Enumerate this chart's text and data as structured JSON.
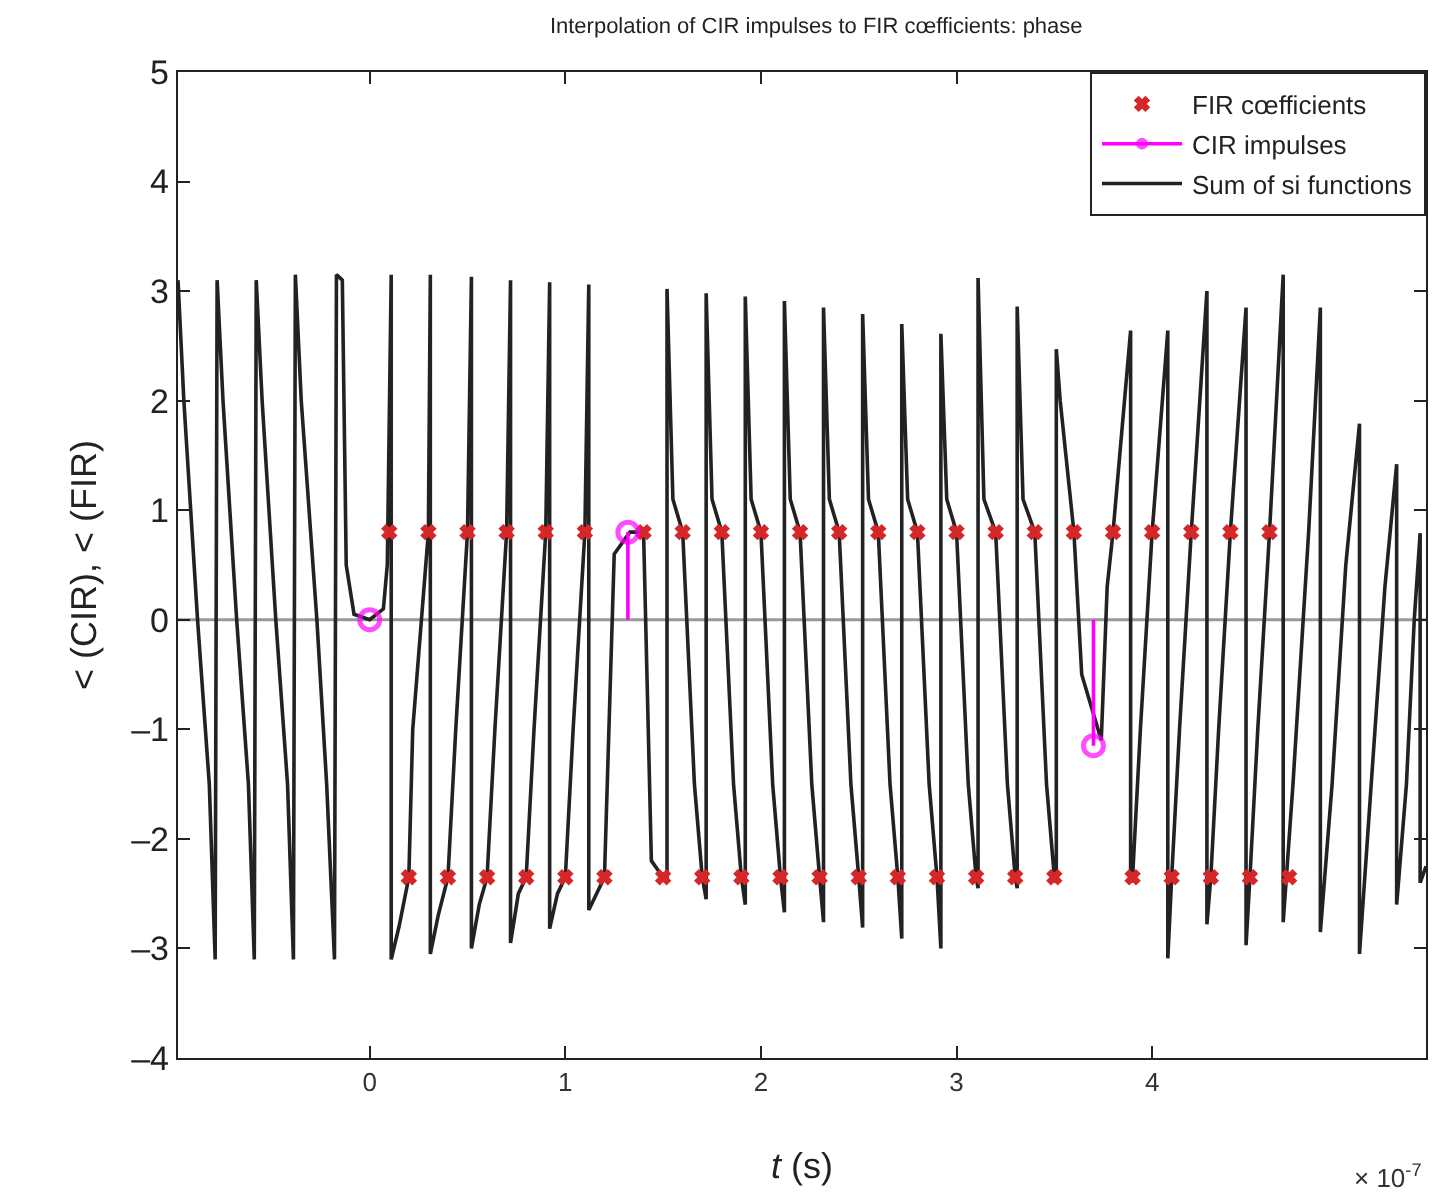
{
  "chart_data": {
    "type": "line",
    "title": "Interpolation of CIR impulses to FIR cœfficients: phase",
    "xlabel": "t (s)",
    "ylabel": "< (CIR), < (FIR)",
    "xlim": [
      -0.98,
      5.4
    ],
    "xticks": [
      0,
      1,
      2,
      3,
      4
    ],
    "ylim": [
      -4,
      5
    ],
    "yticks": [
      {
        "value": -4,
        "label": "–4"
      },
      {
        "value": -3,
        "label": "–3"
      },
      {
        "value": -2,
        "label": "–2"
      },
      {
        "value": -1,
        "label": "–1"
      },
      0,
      1,
      2,
      3,
      4,
      5
    ],
    "grid": false,
    "legend": "top right",
    "annotations": [
      "× 10$^{-7}$"
    ],
    "ref_lines": [
      {
        "axis": "y",
        "value": 0,
        "color": "#999999"
      }
    ],
    "series": [
      {
        "name": "FIR cœfficients",
        "type": "scatter",
        "marker": "cross",
        "color": "#d62728",
        "x": [
          0.1,
          0.2,
          0.3,
          0.4,
          0.5,
          0.6,
          0.7,
          0.8,
          0.9,
          1.0,
          1.1,
          1.2,
          1.4,
          1.5,
          1.6,
          1.7,
          1.8,
          1.9,
          2.0,
          2.1,
          2.2,
          2.3,
          2.4,
          2.5,
          2.6,
          2.7,
          2.8,
          2.9,
          3.0,
          3.1,
          3.2,
          3.3,
          3.4,
          3.5,
          3.6,
          3.8,
          3.9,
          4.0,
          4.1,
          4.2,
          4.3,
          4.4,
          4.5,
          4.6,
          4.7
        ],
        "values": [
          0.8,
          -2.35,
          0.8,
          -2.35,
          0.8,
          -2.35,
          0.8,
          -2.35,
          0.8,
          -2.35,
          0.8,
          -2.35,
          0.8,
          -2.35,
          0.8,
          -2.35,
          0.8,
          -2.35,
          0.8,
          -2.35,
          0.8,
          -2.35,
          0.8,
          -2.35,
          0.8,
          -2.35,
          0.8,
          -2.35,
          0.8,
          -2.35,
          0.8,
          -2.35,
          0.8,
          -2.35,
          0.8,
          0.8,
          -2.35,
          0.8,
          -2.35,
          0.8,
          -2.35,
          0.8,
          -2.35,
          0.8,
          -2.35
        ]
      },
      {
        "name": "CIR impulses",
        "type": "lollipop",
        "marker": "circle",
        "color": "#ff00ff",
        "x": [
          0,
          1.32,
          3.7
        ],
        "values": [
          0,
          0.8,
          -1.15
        ]
      },
      {
        "name": "Sum of si functions",
        "marker": "none",
        "line_style": "solid",
        "color": "#222222",
        "x": [
          -0.98,
          -0.95,
          -0.88,
          -0.82,
          -0.79,
          -0.78,
          -0.75,
          -0.68,
          -0.62,
          -0.59,
          -0.58,
          -0.55,
          -0.48,
          -0.42,
          -0.39,
          -0.38,
          -0.35,
          -0.27,
          -0.22,
          -0.18,
          -0.17,
          -0.14,
          -0.12,
          -0.08,
          0,
          0.07,
          0.09,
          0.11,
          0.11,
          0.15,
          0.2,
          0.22,
          0.3,
          0.31,
          0.31,
          0.35,
          0.4,
          0.44,
          0.5,
          0.52,
          0.52,
          0.56,
          0.6,
          0.64,
          0.7,
          0.72,
          0.72,
          0.76,
          0.8,
          0.84,
          0.9,
          0.92,
          0.92,
          0.96,
          1.0,
          1.04,
          1.1,
          1.12,
          1.12,
          1.2,
          1.25,
          1.33,
          1.4,
          1.44,
          1.5,
          1.52,
          1.52,
          1.55,
          1.6,
          1.66,
          1.7,
          1.72,
          1.72,
          1.75,
          1.8,
          1.86,
          1.9,
          1.92,
          1.92,
          1.95,
          2.0,
          2.06,
          2.1,
          2.12,
          2.12,
          2.15,
          2.2,
          2.26,
          2.3,
          2.32,
          2.32,
          2.35,
          2.4,
          2.46,
          2.5,
          2.52,
          2.52,
          2.55,
          2.6,
          2.66,
          2.7,
          2.72,
          2.72,
          2.75,
          2.8,
          2.86,
          2.9,
          2.92,
          2.92,
          2.95,
          3.0,
          3.06,
          3.1,
          3.11,
          3.11,
          3.14,
          3.2,
          3.26,
          3.3,
          3.31,
          3.31,
          3.34,
          3.4,
          3.46,
          3.5,
          3.51,
          3.51,
          3.53,
          3.6,
          3.64,
          3.74,
          3.77,
          3.8,
          3.89,
          3.89,
          3.9,
          3.94,
          4.0,
          4.08,
          4.08,
          4.1,
          4.14,
          4.2,
          4.28,
          4.28,
          4.3,
          4.34,
          4.4,
          4.48,
          4.48,
          4.5,
          4.54,
          4.6,
          4.67,
          4.67,
          4.72,
          4.8,
          4.86,
          4.86,
          4.92,
          4.99,
          5.06,
          5.06,
          5.12,
          5.19,
          5.25,
          5.25,
          5.3,
          5.34,
          5.37,
          5.37,
          5.4
        ],
        "values": [
          3.1,
          2.0,
          0,
          -1.5,
          -3.1,
          3.1,
          2.0,
          0,
          -1.5,
          -3.1,
          3.1,
          2.0,
          0,
          -1.5,
          -3.1,
          3.15,
          2.0,
          0,
          -1.5,
          -3.1,
          3.15,
          3.1,
          0.5,
          0.05,
          0,
          0.1,
          0.5,
          3.15,
          -3.1,
          -2.8,
          -2.35,
          -1.0,
          0.8,
          3.15,
          -3.05,
          -2.7,
          -2.35,
          -1.0,
          0.8,
          3.13,
          -3.0,
          -2.6,
          -2.35,
          -1.0,
          0.8,
          3.1,
          -2.95,
          -2.5,
          -2.35,
          -1.0,
          0.8,
          3.08,
          -2.82,
          -2.5,
          -2.35,
          -1.0,
          0.8,
          3.06,
          -2.65,
          -2.35,
          0.6,
          0.8,
          0.8,
          -2.2,
          -2.35,
          -2.4,
          3.02,
          1.1,
          0.8,
          -1.5,
          -2.35,
          -2.55,
          2.98,
          1.1,
          0.8,
          -1.5,
          -2.35,
          -2.6,
          2.95,
          1.1,
          0.8,
          -1.5,
          -2.35,
          -2.67,
          2.91,
          1.1,
          0.8,
          -1.5,
          -2.35,
          -2.76,
          2.85,
          1.1,
          0.8,
          -1.5,
          -2.35,
          -2.81,
          2.79,
          1.1,
          0.8,
          -1.5,
          -2.35,
          -2.91,
          2.7,
          1.1,
          0.8,
          -1.5,
          -2.35,
          -3.0,
          2.61,
          1.1,
          0.8,
          -1.5,
          -2.35,
          -2.45,
          3.12,
          1.1,
          0.8,
          -1.5,
          -2.35,
          -2.45,
          2.86,
          1.1,
          0.8,
          -1.5,
          -2.35,
          -2.4,
          2.47,
          2.0,
          0.8,
          -0.5,
          -1.1,
          0.3,
          0.8,
          2.64,
          -2.4,
          -2.35,
          -1.0,
          0.8,
          2.64,
          -3.09,
          -2.35,
          -1.0,
          0.8,
          3.0,
          -2.78,
          -2.35,
          -1.0,
          0.8,
          2.85,
          -2.97,
          -2.35,
          -1.0,
          0.8,
          3.15,
          -2.76,
          -1.5,
          0.8,
          2.85,
          -2.85,
          -1.5,
          0.5,
          1.79,
          -3.05,
          -1.5,
          0.3,
          1.42,
          -2.6,
          -1.5,
          0.0,
          0.79,
          -2.4,
          -2.25
        ]
      }
    ]
  }
}
